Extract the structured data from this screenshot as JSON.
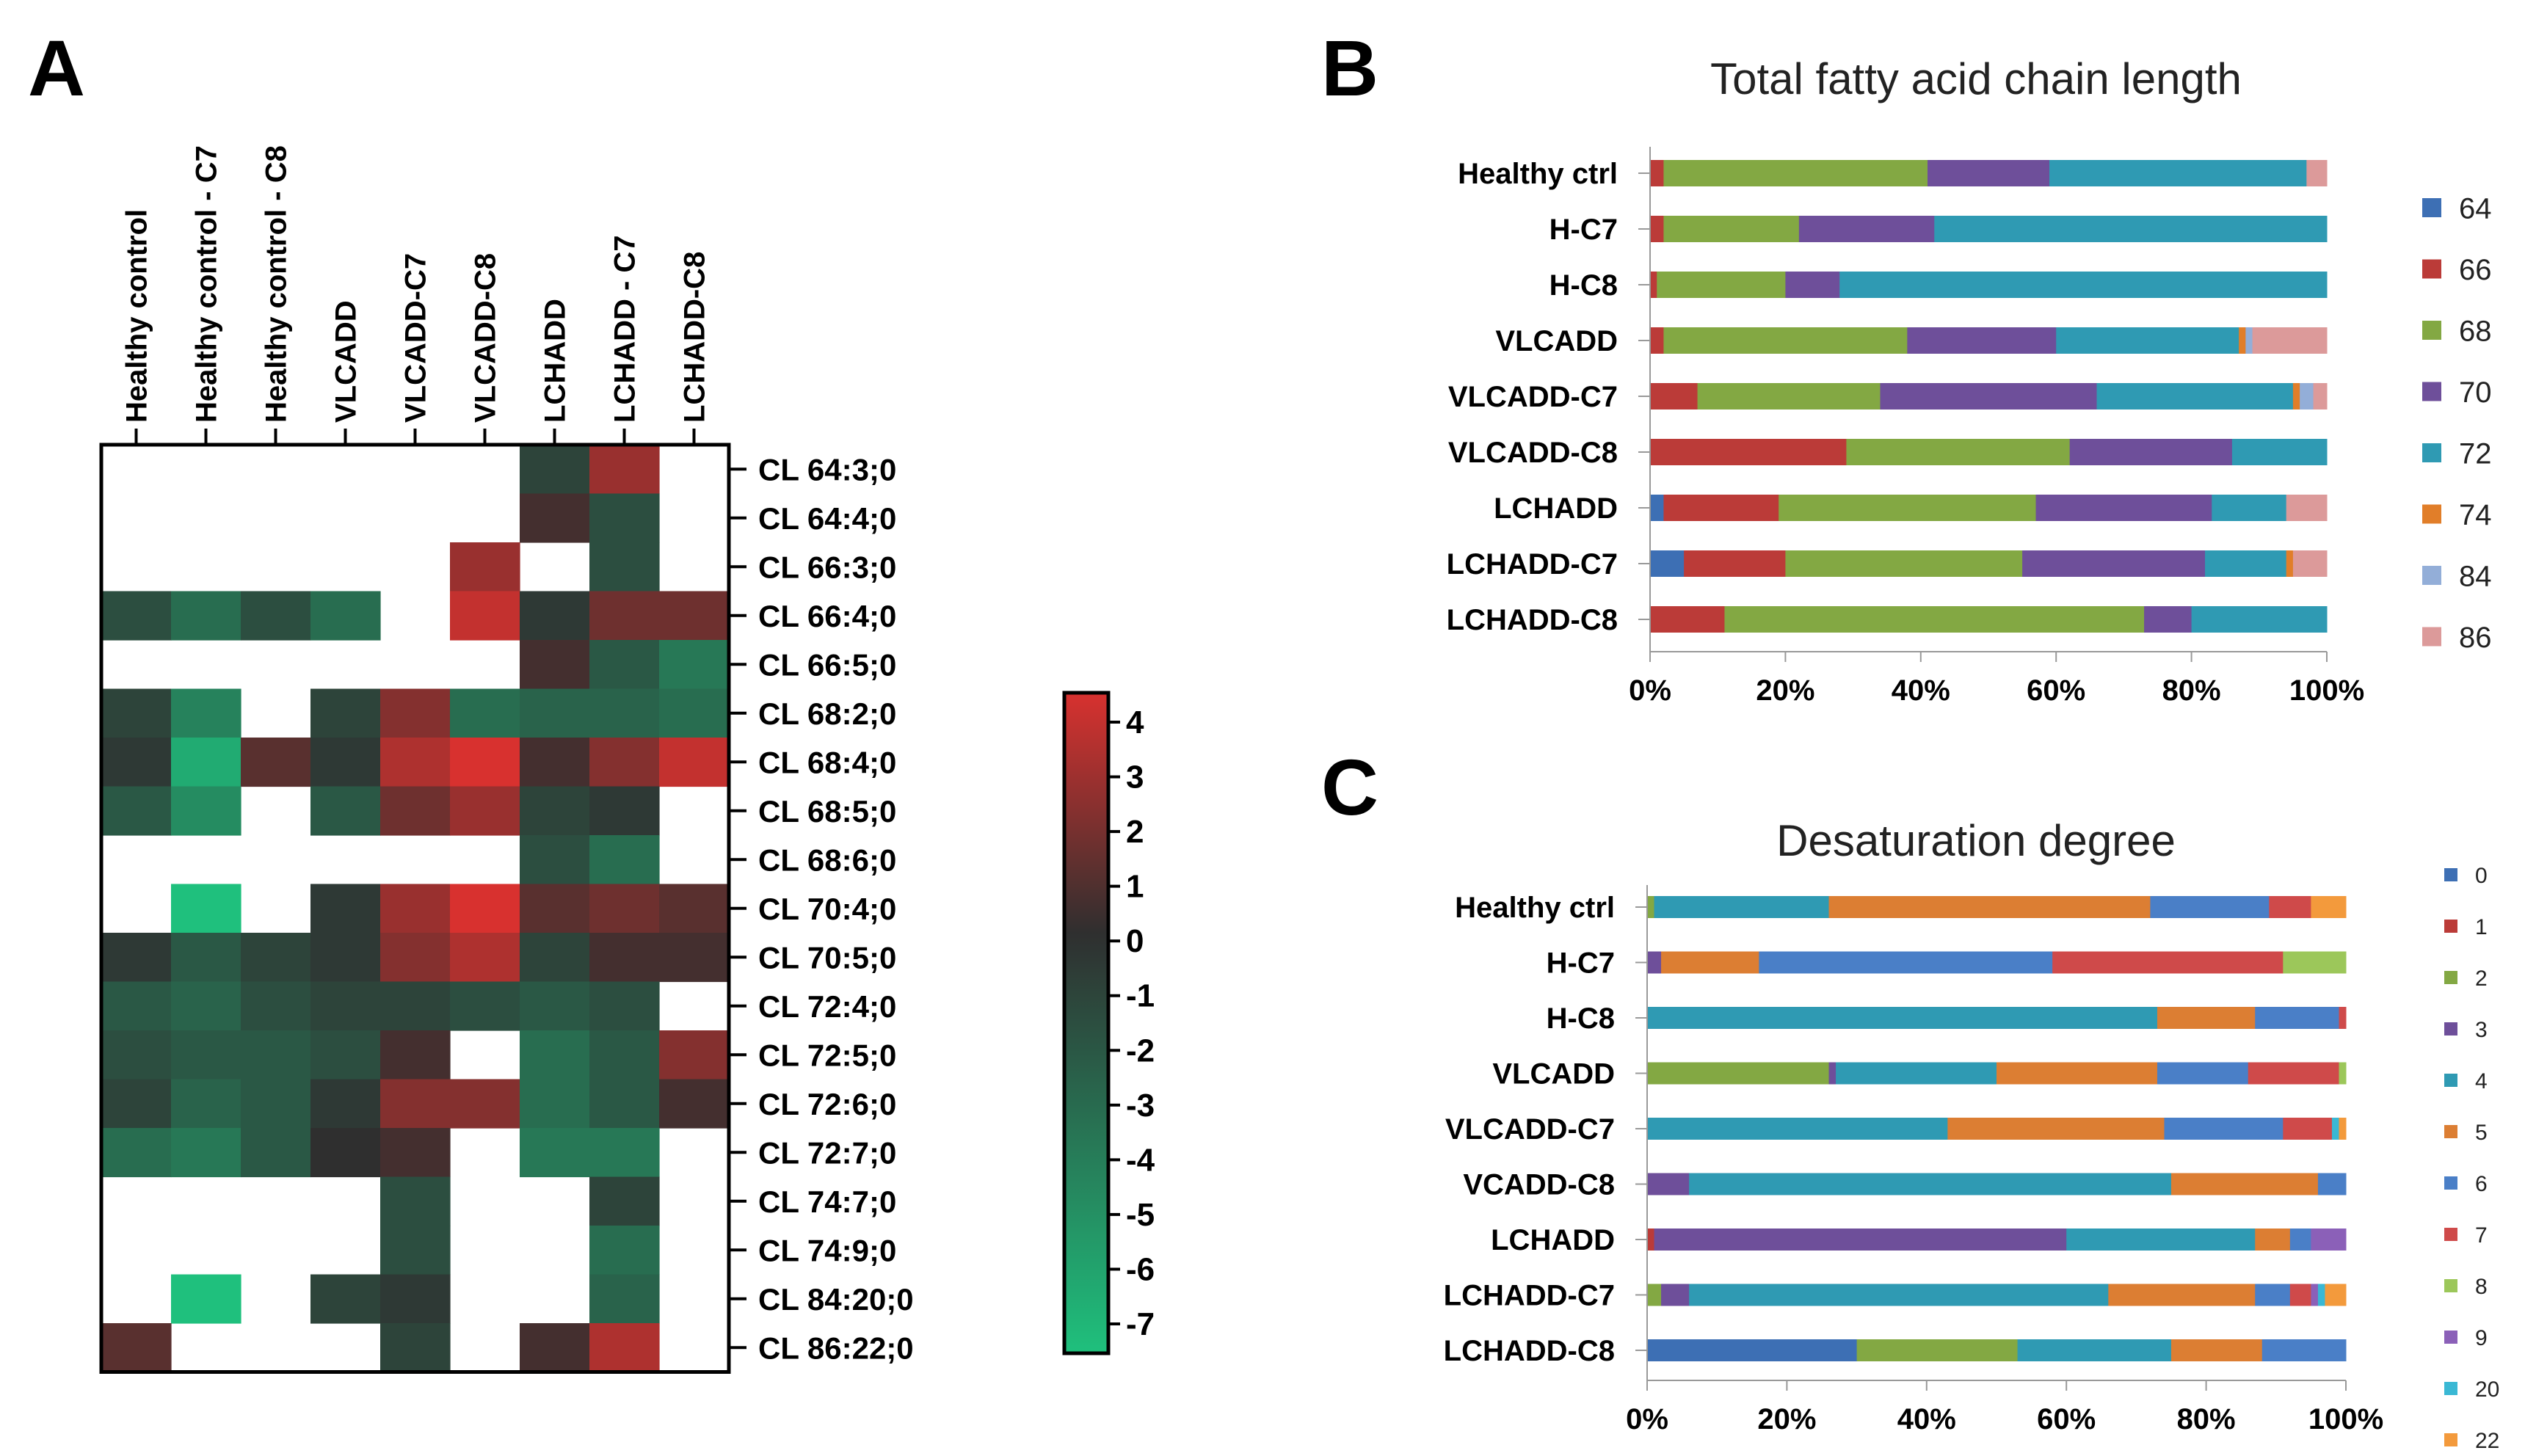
{
  "panels": {
    "A": "A",
    "B": "B",
    "C": "C"
  },
  "colors": {
    "64": "#3d6fb4",
    "66": "#bb3b38",
    "68": "#83a843",
    "70": "#6e4f9a",
    "72": "#2f9ab3",
    "74": "#e17e29",
    "84": "#93aed8",
    "86": "#dc9a9a",
    "d0": "#3d6fb4",
    "d1": "#bb3b38",
    "d2": "#83a843",
    "d3": "#6e4f9a",
    "d4": "#2f9ab3",
    "d5": "#dc7e33",
    "d6": "#4a7fc7",
    "d7": "#cf4a4a",
    "d8": "#9cc75a",
    "d9": "#8b60b8",
    "d20": "#3ab8d4",
    "d22": "#f39a3c",
    "heat_low": "#1fc07d",
    "heat_mid": "#2f2f2f",
    "heat_high": "#d8312f"
  },
  "chart_data": [
    {
      "id": "A",
      "type": "heatmap",
      "columns": [
        "Healthy control",
        "Healthy control - C7",
        "Healthy control - C8",
        "VLCADD",
        "VLCADD-C7",
        "VLCADD-C8",
        "LCHADD",
        "LCHADD - C7",
        "LCHADD-C8"
      ],
      "rows": [
        "CL 64:3;0",
        "CL 64:4;0",
        "CL 66:3;0",
        "CL 66:4;0",
        "CL 66:5;0",
        "CL 68:2;0",
        "CL 68:4;0",
        "CL 68:5;0",
        "CL 68:6;0",
        "CL 70:4;0",
        "CL 70:5;0",
        "CL 72:4;0",
        "CL 72:5;0",
        "CL 72:6;0",
        "CL 72:7;0",
        "CL 74:7;0",
        "CL 74:9;0",
        "CL 84:20;0",
        "CL 86:22;0"
      ],
      "values": [
        [
          null,
          null,
          null,
          null,
          null,
          null,
          -1,
          2.5,
          null
        ],
        [
          null,
          null,
          null,
          null,
          null,
          null,
          0.5,
          -1.5,
          null
        ],
        [
          null,
          null,
          null,
          null,
          null,
          2.5,
          null,
          -1.5,
          null
        ],
        [
          -1.5,
          -3,
          -1.5,
          -3,
          null,
          3.5,
          -0.5,
          1.5,
          1.5
        ],
        [
          null,
          null,
          null,
          null,
          null,
          null,
          0.5,
          -2,
          -3.5
        ],
        [
          -1,
          -4,
          null,
          -1,
          2,
          -3,
          -2.5,
          -2.5,
          -3
        ],
        [
          -0.5,
          -6,
          1,
          -0.5,
          3,
          4.5,
          0.5,
          2,
          3.5
        ],
        [
          -2,
          -4.5,
          null,
          -2,
          1.5,
          2.5,
          -1,
          -0.5,
          null
        ],
        [
          null,
          null,
          null,
          null,
          null,
          null,
          -1.5,
          -3,
          null
        ],
        [
          null,
          -7,
          null,
          -0.5,
          2.5,
          4,
          1,
          1.5,
          1
        ],
        [
          -0.5,
          -2,
          -1,
          -0.5,
          2,
          3,
          -1,
          0.5,
          0.5
        ],
        [
          -2,
          -2.5,
          -1.5,
          -1,
          -1,
          -1.5,
          -2,
          -1.5,
          null
        ],
        [
          -1.5,
          -2,
          -2,
          -1.5,
          0.5,
          null,
          -3,
          -2,
          2
        ],
        [
          -1,
          -2.5,
          -2,
          -0.5,
          2,
          2,
          -3,
          -2,
          0.5
        ],
        [
          -3,
          -3.5,
          -2,
          0,
          0.5,
          null,
          -3.5,
          -3.5,
          null
        ],
        [
          null,
          null,
          null,
          null,
          -1.5,
          null,
          null,
          -1,
          null
        ],
        [
          null,
          null,
          null,
          null,
          -1.5,
          null,
          null,
          -3,
          null
        ],
        [
          null,
          -7,
          null,
          -1,
          -0.5,
          null,
          null,
          -2.5,
          null
        ],
        [
          1,
          null,
          null,
          null,
          -1,
          null,
          0.5,
          3,
          null
        ]
      ],
      "colorbar": {
        "min": -7,
        "max": 4,
        "ticks": [
          "4",
          "3",
          "2",
          "1",
          "0",
          "-1",
          "-2",
          "-3",
          "-4",
          "-5",
          "-6",
          "-7"
        ]
      }
    },
    {
      "id": "B",
      "type": "bar",
      "orientation": "horizontal",
      "stacked": "percent",
      "title": "Total fatty acid chain length",
      "categories": [
        "Healthy ctrl",
        "H-C7",
        "H-C8",
        "VLCADD",
        "VLCADD-C7",
        "VLCADD-C8",
        "LCHADD",
        "LCHADD-C7",
        "LCHADD-C8"
      ],
      "legend": [
        "64",
        "66",
        "68",
        "70",
        "72",
        "74",
        "84",
        "86"
      ],
      "series": [
        {
          "name": "64",
          "values": [
            0,
            0,
            0,
            0,
            0,
            0,
            2,
            5,
            0
          ]
        },
        {
          "name": "66",
          "values": [
            2,
            2,
            1,
            2,
            7,
            29,
            17,
            15,
            11
          ]
        },
        {
          "name": "68",
          "values": [
            39,
            20,
            19,
            36,
            27,
            33,
            38,
            35,
            62
          ]
        },
        {
          "name": "70",
          "values": [
            18,
            20,
            8,
            22,
            32,
            24,
            26,
            27,
            7
          ]
        },
        {
          "name": "72",
          "values": [
            38,
            58,
            72,
            27,
            29,
            14,
            11,
            12,
            20
          ]
        },
        {
          "name": "74",
          "values": [
            0,
            0,
            0,
            1,
            1,
            0,
            0,
            1,
            0
          ]
        },
        {
          "name": "84",
          "values": [
            0,
            0,
            0,
            1,
            2,
            0,
            0,
            0,
            0
          ]
        },
        {
          "name": "86",
          "values": [
            3,
            0,
            0,
            11,
            2,
            0,
            6,
            5,
            0
          ]
        }
      ],
      "xticks": [
        "0%",
        "20%",
        "40%",
        "60%",
        "80%",
        "100%"
      ]
    },
    {
      "id": "C",
      "type": "bar",
      "orientation": "horizontal",
      "stacked": "percent",
      "title": "Desaturation degree",
      "categories": [
        "Healthy ctrl",
        "H-C7",
        "H-C8",
        "VLCADD",
        "VLCADD-C7",
        "VCADD-C8",
        "LCHADD",
        "LCHADD-C7",
        "LCHADD-C8"
      ],
      "legend": [
        "0",
        "1",
        "2",
        "3",
        "4",
        "5",
        "6",
        "7",
        "8",
        "9",
        "20",
        "22"
      ],
      "series": [
        {
          "name": "0",
          "values": [
            0,
            0,
            0,
            0,
            0,
            0,
            0,
            0,
            30
          ]
        },
        {
          "name": "1",
          "values": [
            0,
            0,
            0,
            0,
            0,
            0,
            1,
            0,
            0
          ]
        },
        {
          "name": "2",
          "values": [
            1,
            0,
            0,
            26,
            0,
            0,
            0,
            2,
            23
          ]
        },
        {
          "name": "3",
          "values": [
            0,
            2,
            0,
            1,
            0,
            6,
            59,
            4,
            0
          ]
        },
        {
          "name": "4",
          "values": [
            25,
            0,
            73,
            23,
            43,
            69,
            27,
            60,
            22
          ]
        },
        {
          "name": "5",
          "values": [
            46,
            14,
            14,
            23,
            31,
            21,
            5,
            21,
            13
          ]
        },
        {
          "name": "6",
          "values": [
            17,
            42,
            12,
            13,
            17,
            4,
            3,
            5,
            12
          ]
        },
        {
          "name": "7",
          "values": [
            6,
            33,
            1,
            13,
            7,
            0,
            0,
            3,
            0
          ]
        },
        {
          "name": "8",
          "values": [
            0,
            9,
            0,
            1,
            0,
            0,
            0,
            0,
            0
          ]
        },
        {
          "name": "9",
          "values": [
            0,
            0,
            0,
            0,
            0,
            0,
            5,
            1,
            0
          ]
        },
        {
          "name": "20",
          "values": [
            0,
            0,
            0,
            0,
            1,
            0,
            0,
            1,
            0
          ]
        },
        {
          "name": "22",
          "values": [
            5,
            0,
            0,
            0,
            1,
            0,
            0,
            3,
            0
          ]
        }
      ],
      "xticks": [
        "0%",
        "20%",
        "40%",
        "60%",
        "80%",
        "100%"
      ]
    }
  ]
}
